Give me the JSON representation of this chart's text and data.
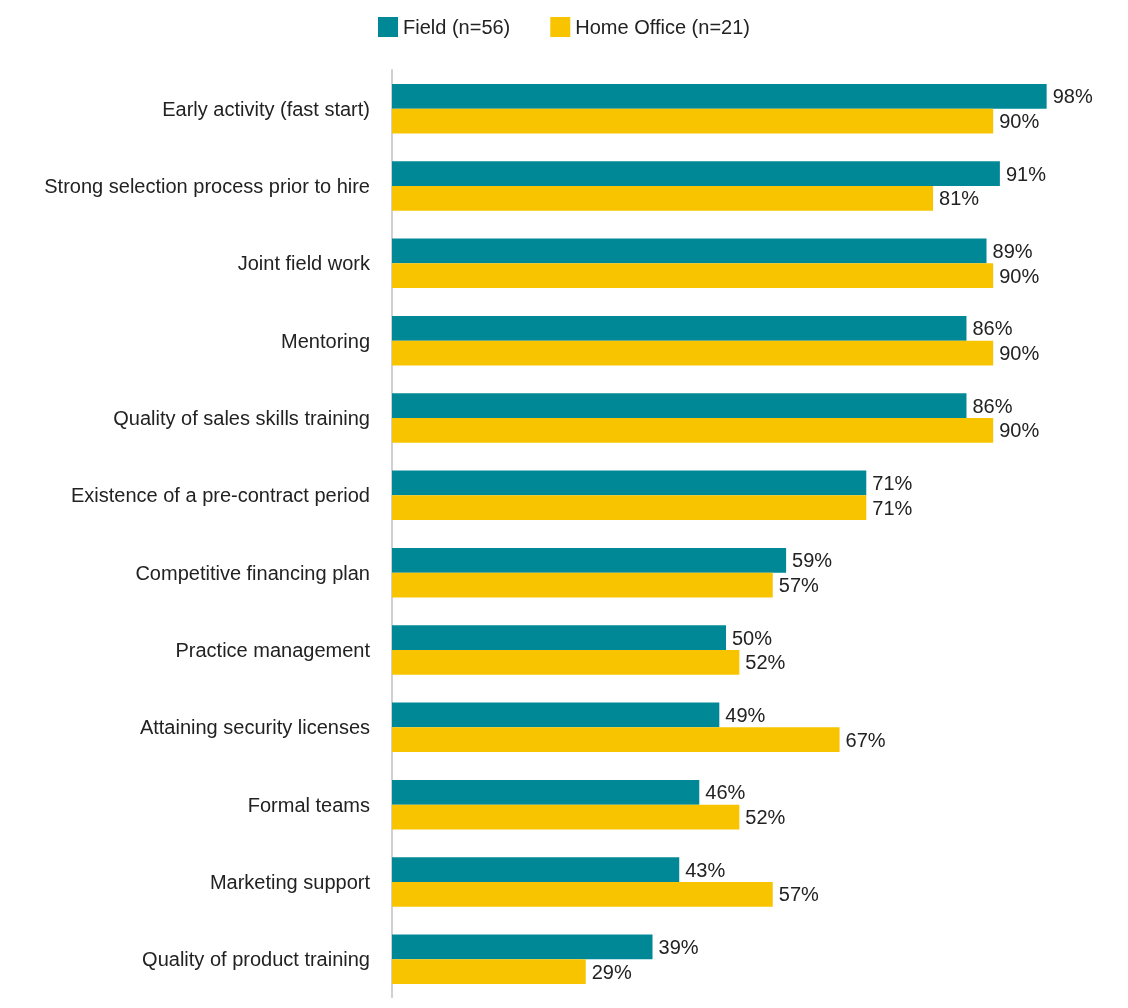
{
  "chart_data": {
    "type": "bar",
    "orientation": "horizontal",
    "legend": "top",
    "grid": false,
    "categories": [
      "Early activity (fast start)",
      "Strong selection process prior to hire",
      "Joint field work",
      "Mentoring",
      "Quality of sales skills training",
      "Existence of a pre-contract period",
      "Competitive financing plan",
      "Practice management",
      "Attaining security licenses",
      "Formal teams",
      "Marketing support",
      "Quality of product training"
    ],
    "series": [
      {
        "name": "Field (n=56)",
        "color": "#008896",
        "values": [
          98,
          91,
          89,
          86,
          86,
          71,
          59,
          50,
          49,
          46,
          43,
          39
        ],
        "value_labels": [
          "98%",
          "91%",
          "89%",
          "86%",
          "86%",
          "71%",
          "59%",
          "50%",
          "49%",
          "46%",
          "43%",
          "39%"
        ]
      },
      {
        "name": "Home Office (n=21)",
        "color": "#f8c400",
        "values": [
          90,
          81,
          90,
          90,
          90,
          71,
          57,
          52,
          67,
          52,
          57,
          29
        ],
        "value_labels": [
          "90%",
          "81%",
          "90%",
          "90%",
          "90%",
          "71%",
          "57%",
          "52%",
          "67%",
          "52%",
          "57%",
          "29%"
        ]
      }
    ]
  }
}
